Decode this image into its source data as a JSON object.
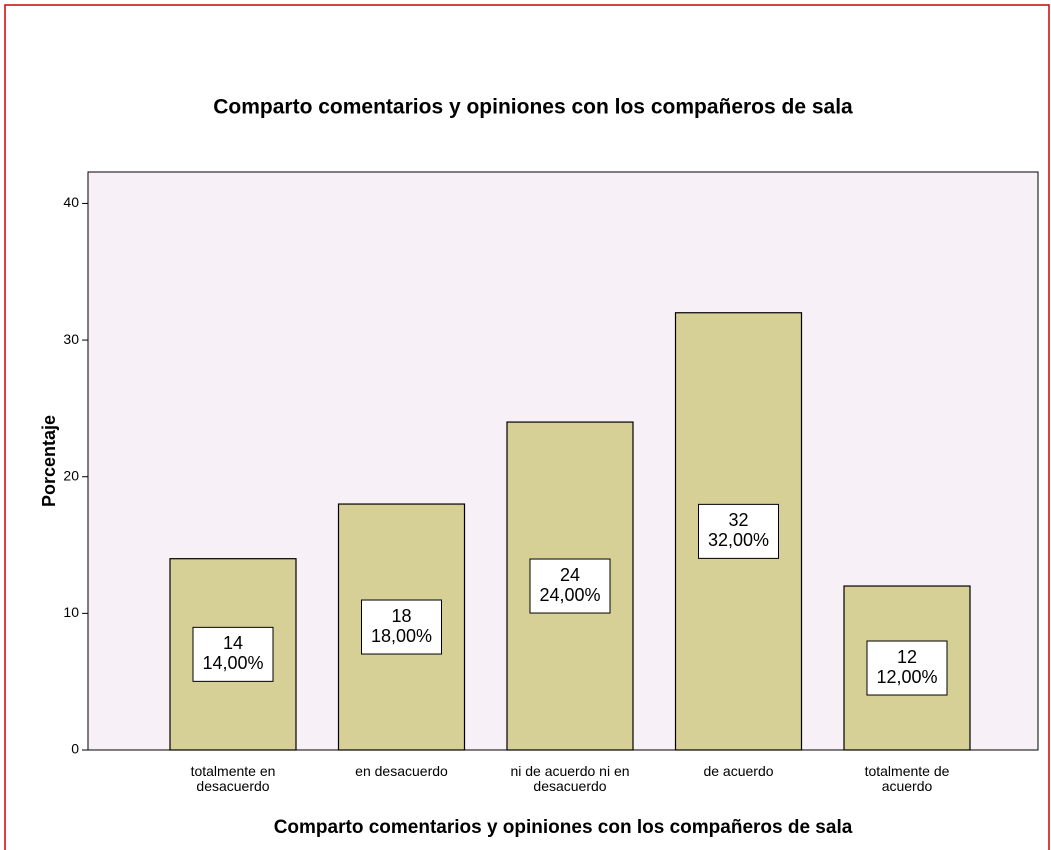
{
  "chart_data": {
    "type": "bar",
    "title": "Comparto comentarios y opiniones con los compañeros de sala",
    "x_label": "Comparto comentarios y opiniones con los compañeros de sala",
    "y_label": "Porcentaje",
    "categories": [
      "totalmente en desacuerdo",
      "en desacuerdo",
      "ni de acuerdo ni en desacuerdo",
      "de acuerdo",
      "totalmente de acuerdo"
    ],
    "values": [
      14,
      18,
      24,
      32,
      12
    ],
    "counts": [
      14,
      18,
      24,
      32,
      12
    ],
    "value_labels": [
      "14,00%",
      "18,00%",
      "24,00%",
      "32,00%",
      "12,00%"
    ],
    "color": "#d6cf96",
    "ylim": [
      0,
      42.3
    ],
    "yticks": [
      0,
      10,
      20,
      30,
      40
    ],
    "grid": false
  }
}
